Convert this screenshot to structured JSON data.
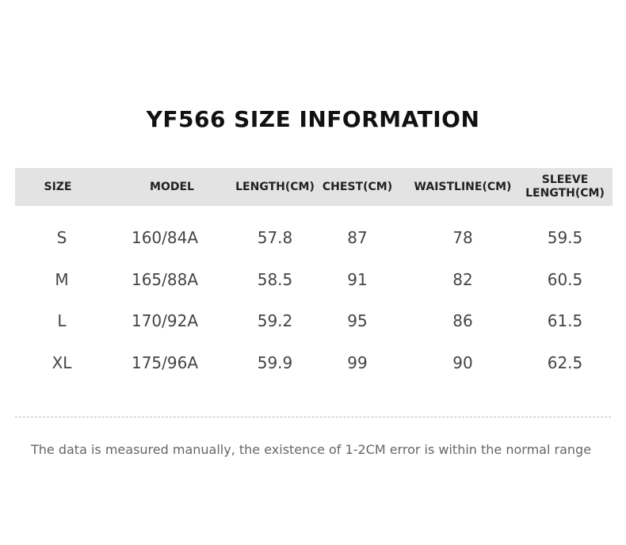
{
  "title": "YF566 SIZE INFORMATION",
  "table": {
    "header": [
      "SIZE",
      "MODEL",
      "LENGTH(CM)",
      "CHEST(CM)",
      "WAISTLINE(CM)",
      "SLEEVE LENGTH(CM)"
    ],
    "rows": [
      [
        "S",
        "160/84A",
        "57.8",
        "87",
        "78",
        "59.5"
      ],
      [
        "M",
        "165/88A",
        "58.5",
        "91",
        "82",
        "60.5"
      ],
      [
        "L",
        "170/92A",
        "59.2",
        "95",
        "86",
        "61.5"
      ],
      [
        "XL",
        "175/96A",
        "59.9",
        "99",
        "90",
        "62.5"
      ]
    ]
  },
  "note": "The data is measured manually, the existence of 1-2CM error is within the normal range"
}
